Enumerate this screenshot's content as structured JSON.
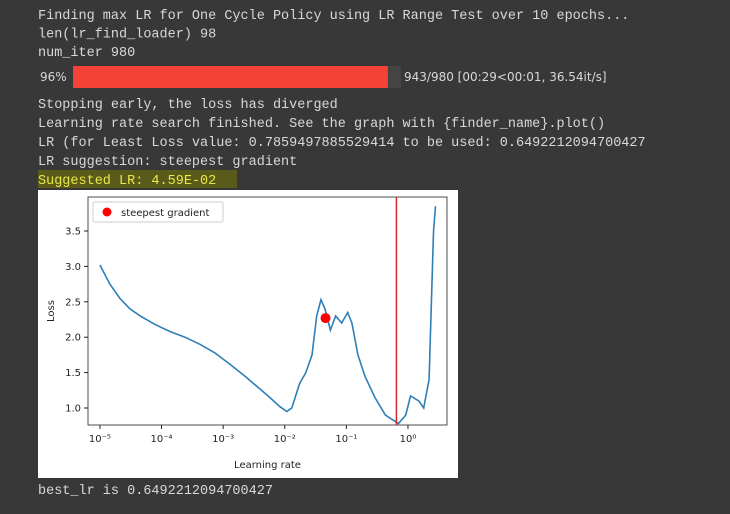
{
  "output_top": [
    "Finding max LR for One Cycle Policy using LR Range Test over 10 epochs...",
    "len(lr_find_loader) 98",
    "num_iter 980"
  ],
  "progress": {
    "value": 96,
    "label": "96%",
    "status": "943/980 [00:29<00:01, 36.54it/s]"
  },
  "output_mid": [
    "Stopping early, the loss has diverged",
    "Learning rate search finished. See the graph with {finder_name}.plot()",
    "LR (for Least Loss value: 0.7859497885529414 to be used: 0.6492212094700427",
    "LR suggestion: steepest gradient"
  ],
  "suggested": "Suggested LR: 4.59E-02",
  "chart_data": {
    "type": "line",
    "xlabel": "Learning rate",
    "ylabel": "Loss",
    "xscale": "log",
    "xlim": [
      6.4e-06,
      4.3
    ],
    "ylim": [
      0.76,
      3.98
    ],
    "xticks": [
      {
        "value": 1e-05,
        "label": "10⁻⁵"
      },
      {
        "value": 0.0001,
        "label": "10⁻⁴"
      },
      {
        "value": 0.001,
        "label": "10⁻³"
      },
      {
        "value": 0.01,
        "label": "10⁻²"
      },
      {
        "value": 0.1,
        "label": "10⁻¹"
      },
      {
        "value": 1,
        "label": "10⁰"
      }
    ],
    "yticks": [
      {
        "value": 1,
        "label": "1.0"
      },
      1.5,
      {
        "value": 2,
        "label": "2.0"
      },
      2.5,
      {
        "value": 3,
        "label": "3.0"
      },
      3.5
    ],
    "series": [
      {
        "color": "#2e7fb8",
        "x": [
          1e-05,
          1.45e-05,
          2.1e-05,
          3.07e-05,
          4.5e-05,
          7.8e-05,
          0.000137,
          0.00024,
          0.00042,
          0.00073,
          0.00128,
          0.00225,
          0.00394,
          0.0057,
          0.0083,
          0.0108,
          0.013,
          0.0175,
          0.022,
          0.0277,
          0.033,
          0.0387,
          0.045,
          0.055,
          0.067,
          0.084,
          0.105,
          0.123,
          0.154,
          0.2,
          0.29,
          0.43,
          0.7,
          0.92,
          1.1,
          1.5,
          1.8,
          2.2,
          2.6,
          2.8
        ],
        "values": [
          3.02,
          2.75,
          2.55,
          2.4,
          2.3,
          2.18,
          2.08,
          2.0,
          1.9,
          1.78,
          1.62,
          1.45,
          1.27,
          1.15,
          1.02,
          0.95,
          1.0,
          1.35,
          1.5,
          1.75,
          2.3,
          2.53,
          2.4,
          2.1,
          2.3,
          2.2,
          2.35,
          2.2,
          1.75,
          1.45,
          1.15,
          0.9,
          0.78,
          0.9,
          1.17,
          1.1,
          1.0,
          1.4,
          3.5,
          3.85
        ]
      }
    ],
    "points": [
      {
        "name": "steepest gradient",
        "color": "#ff0000",
        "x": 0.0459,
        "y": 2.27
      }
    ],
    "vline": {
      "x": 0.6492212094700427,
      "color": "#d62728"
    },
    "legend": "upper left"
  },
  "output_bottom": "best_lr is 0.6492212094700427"
}
